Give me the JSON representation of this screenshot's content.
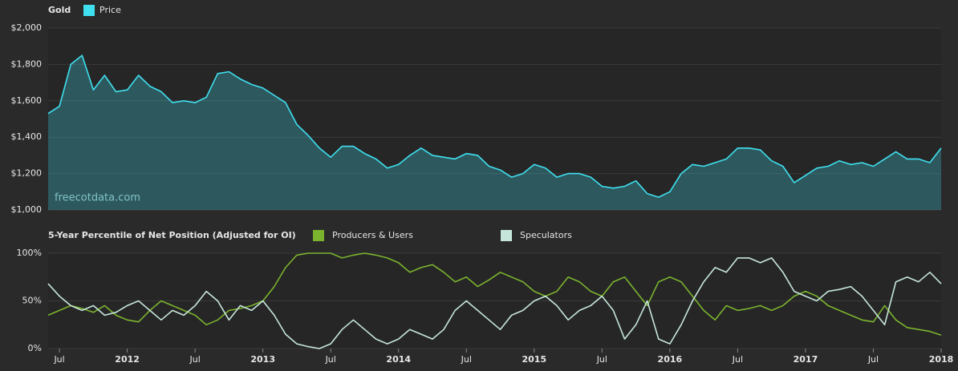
{
  "chart_data": [
    {
      "type": "area",
      "title": "Gold",
      "watermark": "freecotdata.com",
      "x": [
        "2011-06",
        "2011-07",
        "2011-08",
        "2011-09",
        "2011-10",
        "2011-11",
        "2011-12",
        "2012-01",
        "2012-02",
        "2012-03",
        "2012-04",
        "2012-05",
        "2012-06",
        "2012-07",
        "2012-08",
        "2012-09",
        "2012-10",
        "2012-11",
        "2012-12",
        "2013-01",
        "2013-02",
        "2013-03",
        "2013-04",
        "2013-05",
        "2013-06",
        "2013-07",
        "2013-08",
        "2013-09",
        "2013-10",
        "2013-11",
        "2013-12",
        "2014-01",
        "2014-02",
        "2014-03",
        "2014-04",
        "2014-05",
        "2014-06",
        "2014-07",
        "2014-08",
        "2014-09",
        "2014-10",
        "2014-11",
        "2014-12",
        "2015-01",
        "2015-02",
        "2015-03",
        "2015-04",
        "2015-05",
        "2015-06",
        "2015-07",
        "2015-08",
        "2015-09",
        "2015-10",
        "2015-11",
        "2015-12",
        "2016-01",
        "2016-02",
        "2016-03",
        "2016-04",
        "2016-05",
        "2016-06",
        "2016-07",
        "2016-08",
        "2016-09",
        "2016-10",
        "2016-11",
        "2016-12",
        "2017-01",
        "2017-02",
        "2017-03",
        "2017-04",
        "2017-05",
        "2017-06",
        "2017-07",
        "2017-08",
        "2017-09",
        "2017-10",
        "2017-11",
        "2017-12",
        "2018-01"
      ],
      "series": [
        {
          "name": "Price",
          "color": "#3fe0f0",
          "values": [
            1530,
            1570,
            1800,
            1850,
            1660,
            1740,
            1650,
            1660,
            1740,
            1680,
            1650,
            1590,
            1600,
            1590,
            1620,
            1750,
            1760,
            1720,
            1690,
            1670,
            1630,
            1590,
            1470,
            1410,
            1340,
            1290,
            1350,
            1350,
            1310,
            1280,
            1230,
            1250,
            1300,
            1340,
            1300,
            1290,
            1280,
            1310,
            1300,
            1240,
            1220,
            1180,
            1200,
            1250,
            1230,
            1180,
            1200,
            1200,
            1180,
            1130,
            1120,
            1130,
            1160,
            1090,
            1070,
            1100,
            1200,
            1250,
            1240,
            1260,
            1280,
            1340,
            1340,
            1330,
            1270,
            1240,
            1150,
            1190,
            1230,
            1240,
            1270,
            1250,
            1260,
            1240,
            1280,
            1320,
            1280,
            1280,
            1260,
            1340
          ]
        }
      ],
      "xlim": [
        "2011-06",
        "2018-01"
      ],
      "ylim": [
        1000,
        2000
      ],
      "yticks": [
        {
          "value": 1000,
          "label": "$1,000"
        },
        {
          "value": 1200,
          "label": "$1,200"
        },
        {
          "value": 1400,
          "label": "$1,400"
        },
        {
          "value": 1600,
          "label": "$1,600"
        },
        {
          "value": 1800,
          "label": "$1,800"
        },
        {
          "value": 2000,
          "label": "$2,000"
        }
      ],
      "grid": true
    },
    {
      "type": "line",
      "title": "5-Year Percentile of Net Position (Adjusted for OI)",
      "x": [
        "2011-06",
        "2011-07",
        "2011-08",
        "2011-09",
        "2011-10",
        "2011-11",
        "2011-12",
        "2012-01",
        "2012-02",
        "2012-03",
        "2012-04",
        "2012-05",
        "2012-06",
        "2012-07",
        "2012-08",
        "2012-09",
        "2012-10",
        "2012-11",
        "2012-12",
        "2013-01",
        "2013-02",
        "2013-03",
        "2013-04",
        "2013-05",
        "2013-06",
        "2013-07",
        "2013-08",
        "2013-09",
        "2013-10",
        "2013-11",
        "2013-12",
        "2014-01",
        "2014-02",
        "2014-03",
        "2014-04",
        "2014-05",
        "2014-06",
        "2014-07",
        "2014-08",
        "2014-09",
        "2014-10",
        "2014-11",
        "2014-12",
        "2015-01",
        "2015-02",
        "2015-03",
        "2015-04",
        "2015-05",
        "2015-06",
        "2015-07",
        "2015-08",
        "2015-09",
        "2015-10",
        "2015-11",
        "2015-12",
        "2016-01",
        "2016-02",
        "2016-03",
        "2016-04",
        "2016-05",
        "2016-06",
        "2016-07",
        "2016-08",
        "2016-09",
        "2016-10",
        "2016-11",
        "2016-12",
        "2017-01",
        "2017-02",
        "2017-03",
        "2017-04",
        "2017-05",
        "2017-06",
        "2017-07",
        "2017-08",
        "2017-09",
        "2017-10",
        "2017-11",
        "2017-12",
        "2018-01"
      ],
      "series": [
        {
          "name": "Producers & Users",
          "color": "#7bb32e",
          "values": [
            35,
            40,
            45,
            42,
            38,
            45,
            35,
            30,
            28,
            40,
            50,
            45,
            40,
            35,
            25,
            30,
            40,
            42,
            45,
            50,
            65,
            85,
            98,
            100,
            100,
            100,
            95,
            98,
            100,
            98,
            95,
            90,
            80,
            85,
            88,
            80,
            70,
            75,
            65,
            72,
            80,
            75,
            70,
            60,
            55,
            60,
            75,
            70,
            60,
            55,
            70,
            75,
            60,
            45,
            70,
            75,
            70,
            55,
            40,
            30,
            45,
            40,
            42,
            45,
            40,
            45,
            55,
            60,
            55,
            45,
            40,
            35,
            30,
            28,
            45,
            30,
            22,
            20,
            18,
            14
          ]
        },
        {
          "name": "Speculators",
          "color": "#c6e6dc",
          "values": [
            68,
            55,
            45,
            40,
            45,
            35,
            38,
            45,
            50,
            40,
            30,
            40,
            35,
            45,
            60,
            50,
            30,
            45,
            40,
            50,
            35,
            15,
            5,
            2,
            0,
            5,
            20,
            30,
            20,
            10,
            5,
            10,
            20,
            15,
            10,
            20,
            40,
            50,
            40,
            30,
            20,
            35,
            40,
            50,
            55,
            45,
            30,
            40,
            45,
            55,
            40,
            10,
            25,
            50,
            10,
            5,
            25,
            50,
            70,
            85,
            80,
            95,
            95,
            90,
            95,
            80,
            60,
            55,
            50,
            60,
            62,
            65,
            55,
            40,
            25,
            70,
            75,
            70,
            80,
            68
          ]
        }
      ],
      "xlim": [
        "2011-06",
        "2018-01"
      ],
      "xticks": [
        {
          "value": "2011-07",
          "label": "Jul"
        },
        {
          "value": "2012-01",
          "label": "2012"
        },
        {
          "value": "2012-07",
          "label": "Jul"
        },
        {
          "value": "2013-01",
          "label": "2013"
        },
        {
          "value": "2013-07",
          "label": "Jul"
        },
        {
          "value": "2014-01",
          "label": "2014"
        },
        {
          "value": "2014-07",
          "label": "Jul"
        },
        {
          "value": "2015-01",
          "label": "2015"
        },
        {
          "value": "2015-07",
          "label": "Jul"
        },
        {
          "value": "2016-01",
          "label": "2016"
        },
        {
          "value": "2016-07",
          "label": "Jul"
        },
        {
          "value": "2017-01",
          "label": "2017"
        },
        {
          "value": "2017-07",
          "label": "Jul"
        },
        {
          "value": "2018-01",
          "label": "2018"
        }
      ],
      "ylim": [
        0,
        100
      ],
      "yticks": [
        {
          "value": 0,
          "label": "0%"
        },
        {
          "value": 50,
          "label": "50%"
        },
        {
          "value": 100,
          "label": "100%"
        }
      ],
      "grid": true
    }
  ]
}
